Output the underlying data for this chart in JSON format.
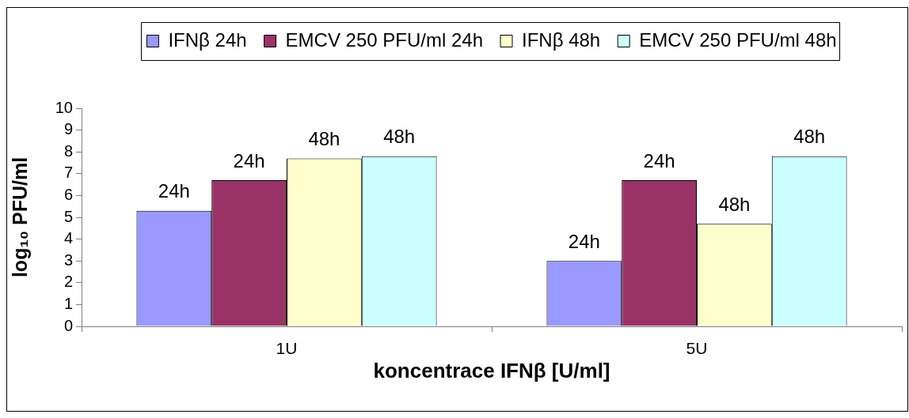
{
  "chart_data": {
    "type": "bar",
    "categories": [
      "1U",
      "5U"
    ],
    "series": [
      {
        "name": "IFNβ 24h",
        "color": "#9999ff",
        "values": [
          5.3,
          3.0
        ]
      },
      {
        "name": "EMCV 250 PFU/ml 24h",
        "color": "#993366",
        "values": [
          6.7,
          6.7
        ]
      },
      {
        "name": "IFNβ 48h",
        "color": "#ffffcc",
        "values": [
          7.7,
          4.7
        ]
      },
      {
        "name": "EMCV 250 PFU/ml 48h",
        "color": "#ccffff",
        "values": [
          7.8,
          7.8
        ]
      }
    ],
    "annotations": [
      "24h",
      "24h",
      "48h",
      "48h",
      "24h",
      "24h",
      "48h",
      "48h"
    ],
    "xlabel": "koncentrace IFNβ [U/ml]",
    "ylabel": "log₁₀ PFU/ml",
    "ylim": [
      0,
      10
    ],
    "yticks": [
      0,
      1,
      2,
      3,
      4,
      5,
      6,
      7,
      8,
      9,
      10
    ],
    "legend": "top"
  }
}
